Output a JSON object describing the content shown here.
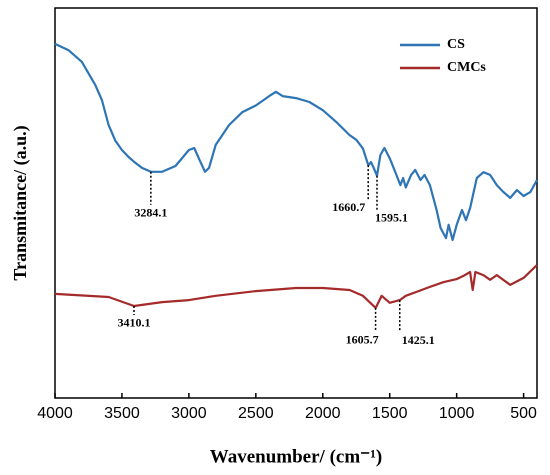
{
  "chart_data": {
    "type": "line",
    "y_label": "Transmitance/ (a.u.)",
    "x_label": "Wavenumber/ (cm⁻¹)",
    "xlim": [
      4000,
      400
    ],
    "xticks": [
      4000,
      3500,
      3000,
      2500,
      2000,
      1500,
      1000,
      500
    ],
    "ylim": [
      0,
      100
    ],
    "legend": "upper right",
    "series": [
      {
        "name": "CS",
        "color": "#2e75b6",
        "x": [
          4000,
          3900,
          3800,
          3700,
          3650,
          3600,
          3550,
          3500,
          3450,
          3400,
          3350,
          3284,
          3200,
          3100,
          3000,
          2960,
          2920,
          2880,
          2850,
          2800,
          2700,
          2600,
          2500,
          2400,
          2350,
          2300,
          2200,
          2100,
          2000,
          1900,
          1800,
          1750,
          1700,
          1660,
          1640,
          1620,
          1595,
          1570,
          1540,
          1500,
          1450,
          1420,
          1400,
          1380,
          1340,
          1310,
          1270,
          1240,
          1200,
          1150,
          1120,
          1080,
          1060,
          1030,
          1000,
          960,
          930,
          900,
          850,
          800,
          750,
          700,
          650,
          600,
          550,
          500,
          450,
          400
        ],
        "values": [
          90.8,
          89.2,
          86.2,
          80.3,
          76.4,
          70,
          66,
          63.6,
          61.8,
          60.3,
          59,
          58,
          58,
          59.5,
          63.6,
          64.1,
          61,
          58,
          59,
          64.9,
          70,
          73.3,
          75,
          77.4,
          78.5,
          77.4,
          76.9,
          75.9,
          73.8,
          70.8,
          67.4,
          66.2,
          64,
          59.7,
          60.5,
          59,
          57,
          62.3,
          64.1,
          61.5,
          57.2,
          54.6,
          56.4,
          54,
          57.2,
          58.5,
          55.9,
          57.2,
          54.6,
          48.2,
          43.6,
          41,
          44.4,
          40.5,
          44.4,
          48.2,
          45.6,
          48.7,
          56.4,
          57.9,
          57.2,
          54.6,
          52.8,
          51.3,
          53.3,
          51.8,
          52.8,
          55.9
        ]
      },
      {
        "name": "CMCs",
        "color": "#a52a2a",
        "x": [
          4000,
          3600,
          3410,
          3200,
          3000,
          2800,
          2500,
          2200,
          2000,
          1800,
          1700,
          1605,
          1560,
          1500,
          1425,
          1380,
          1300,
          1200,
          1100,
          1000,
          950,
          900,
          880,
          860,
          800,
          750,
          700,
          600,
          500,
          400
        ],
        "values": [
          26.7,
          25.9,
          23.6,
          24.6,
          25.1,
          26.2,
          27.4,
          28.2,
          28.2,
          27.7,
          26.2,
          23.1,
          26.2,
          24.4,
          25.1,
          26.2,
          27.2,
          28.5,
          29.7,
          30.5,
          31.3,
          32.3,
          27.7,
          32.3,
          31.5,
          30.3,
          31.5,
          29,
          30.8,
          34.1
        ]
      }
    ],
    "annotations": [
      {
        "label": "3284.1",
        "x": 3284.1,
        "y": 58
      },
      {
        "label": "1660.7",
        "x": 1660.7,
        "y": 59.7
      },
      {
        "label": "1595.1",
        "x": 1595.1,
        "y": 57
      },
      {
        "label": "3410.1",
        "x": 3410.1,
        "y": 23.6
      },
      {
        "label": "1605.7",
        "x": 1605.7,
        "y": 23.1
      },
      {
        "label": "1425.1",
        "x": 1425.1,
        "y": 25.1
      }
    ]
  }
}
